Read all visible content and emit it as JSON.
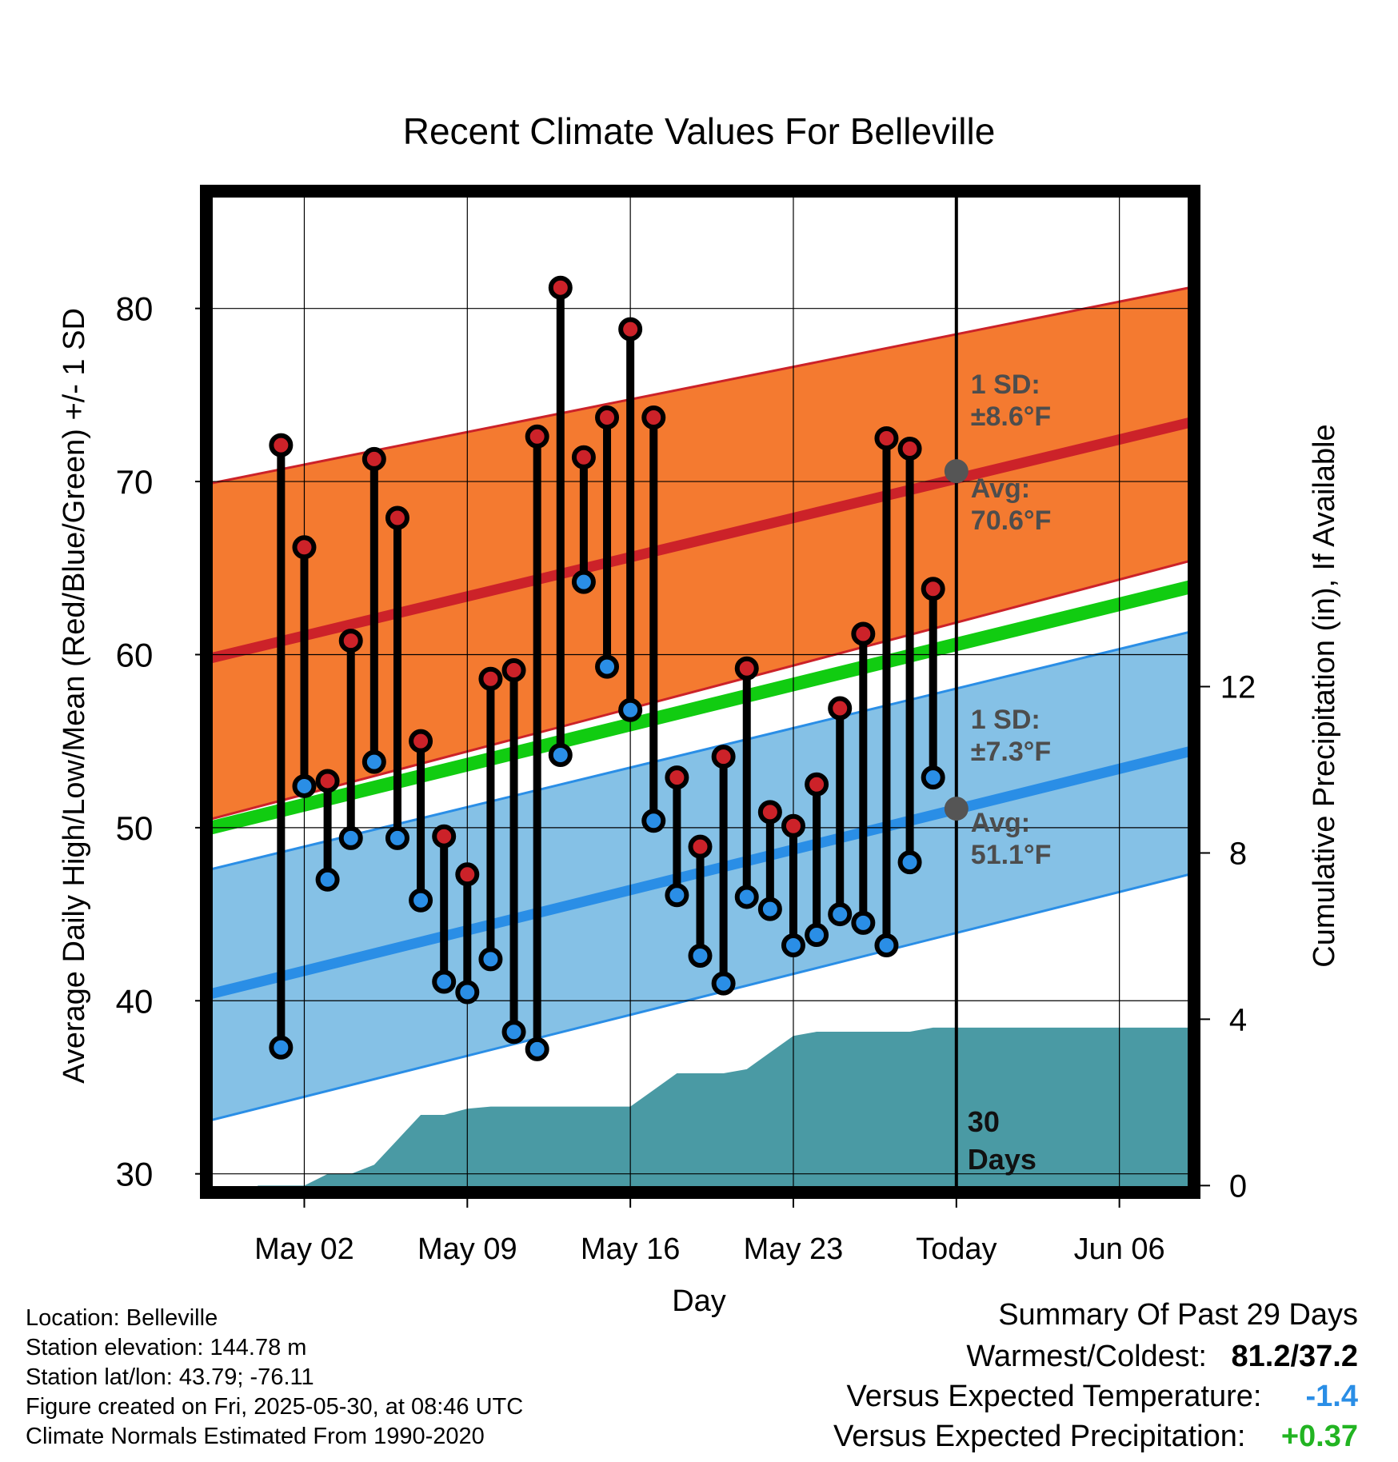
{
  "chart_data": {
    "type": "line",
    "title": "Recent Climate Values For Belleville",
    "xlabel": "Day",
    "ylabel": "Average Daily High/Low/Mean (Red/Blue/Green) +/- 1 SD",
    "y2label": "Cumulative Precipitation (in), If Available",
    "ylim": [
      29.2,
      86.5
    ],
    "y2lim": [
      -0.05,
      23.8
    ],
    "yticks": [
      30,
      40,
      50,
      60,
      70,
      80
    ],
    "y2ticks": [
      0,
      4,
      8,
      12
    ],
    "xlim": [
      "Apr 28",
      "Jun 09"
    ],
    "xticks": [
      {
        "date": "May 02",
        "label": "May 02"
      },
      {
        "date": "May 09",
        "label": "May 09"
      },
      {
        "date": "May 16",
        "label": "May 16"
      },
      {
        "date": "May 23",
        "label": "May 23"
      },
      {
        "date": "May 30",
        "label": "Today"
      },
      {
        "date": "Jun 06",
        "label": "Jun 06"
      }
    ],
    "grid": true,
    "today": "May 30",
    "today_label": "30\nDays",
    "normals": {
      "dates": [
        "Apr 28",
        "Jun 09"
      ],
      "high_avg": [
        59.8,
        73.4
      ],
      "high_upper": [
        69.9,
        81.2
      ],
      "high_lower": [
        50.5,
        65.4
      ],
      "mean": [
        50.0,
        63.9
      ],
      "low_avg": [
        40.4,
        54.4
      ],
      "low_upper": [
        47.6,
        61.3
      ],
      "low_lower": [
        33.1,
        47.3
      ]
    },
    "annotations": {
      "high_sd": {
        "line1": "1 SD:",
        "line2": "±8.6°F",
        "avg_label": "Avg:",
        "avg_value": "70.6°F",
        "avg": 70.6
      },
      "low_sd": {
        "line1": "1 SD:",
        "line2": "±7.3°F",
        "avg_label": "Avg:",
        "avg_value": "51.1°F",
        "avg": 51.1
      }
    },
    "series": [
      {
        "name": "High",
        "color": "#cc2229",
        "dates": [
          "May 01",
          "May 02",
          "May 03",
          "May 04",
          "May 05",
          "May 06",
          "May 07",
          "May 08",
          "May 09",
          "May 10",
          "May 11",
          "May 12",
          "May 13",
          "May 14",
          "May 15",
          "May 16",
          "May 17",
          "May 18",
          "May 19",
          "May 20",
          "May 21",
          "May 22",
          "May 23",
          "May 24",
          "May 25",
          "May 26",
          "May 27",
          "May 28",
          "May 29"
        ],
        "values": [
          72.1,
          66.2,
          52.7,
          60.8,
          71.3,
          67.9,
          55.0,
          49.5,
          47.3,
          58.6,
          59.1,
          72.6,
          81.2,
          71.4,
          73.7,
          78.8,
          73.7,
          52.9,
          48.9,
          54.1,
          59.2,
          50.9,
          50.1,
          52.5,
          56.9,
          61.2,
          72.5,
          71.9,
          63.8
        ]
      },
      {
        "name": "Low",
        "color": "#2a8ee6",
        "dates": [
          "May 01",
          "May 02",
          "May 03",
          "May 04",
          "May 05",
          "May 06",
          "May 07",
          "May 08",
          "May 09",
          "May 10",
          "May 11",
          "May 12",
          "May 13",
          "May 14",
          "May 15",
          "May 16",
          "May 17",
          "May 18",
          "May 19",
          "May 20",
          "May 21",
          "May 22",
          "May 23",
          "May 24",
          "May 25",
          "May 26",
          "May 27",
          "May 28",
          "May 29"
        ],
        "values": [
          37.3,
          52.4,
          47.0,
          49.4,
          53.8,
          49.4,
          45.8,
          41.1,
          40.5,
          42.4,
          38.2,
          37.2,
          54.2,
          64.2,
          59.3,
          56.8,
          50.4,
          46.1,
          42.6,
          41.0,
          46.0,
          45.3,
          43.2,
          43.8,
          45.0,
          44.5,
          43.2,
          48.0,
          52.9
        ]
      },
      {
        "name": "Cumulative Precipitation",
        "color": "#4a9aa4",
        "dates": [
          "Apr 30",
          "May 01",
          "May 02",
          "May 03",
          "May 04",
          "May 05",
          "May 06",
          "May 07",
          "May 08",
          "May 09",
          "May 10",
          "May 11",
          "May 12",
          "May 13",
          "May 14",
          "May 15",
          "May 16",
          "May 17",
          "May 18",
          "May 19",
          "May 20",
          "May 21",
          "May 22",
          "May 23",
          "May 24",
          "May 25",
          "May 26",
          "May 27",
          "May 28",
          "May 29",
          "May 30",
          "Jun 09"
        ],
        "values": [
          0.0,
          0.0,
          0.0,
          0.28,
          0.28,
          0.5,
          1.1,
          1.7,
          1.7,
          1.85,
          1.9,
          1.9,
          1.9,
          1.9,
          1.9,
          1.9,
          1.9,
          2.3,
          2.7,
          2.7,
          2.7,
          2.8,
          3.2,
          3.6,
          3.7,
          3.7,
          3.7,
          3.7,
          3.7,
          3.8,
          3.8,
          3.8
        ]
      }
    ]
  },
  "info": {
    "location": "Location: Belleville",
    "elevation": "Station elevation: 144.78 m",
    "latlon": "Station lat/lon: 43.79; -76.11",
    "created": "Figure created on Fri, 2025-05-30, at 08:46 UTC",
    "normals": "Climate Normals Estimated From 1990-2020"
  },
  "summary": {
    "title": "Summary Of Past 29 Days",
    "warm_cold_label": "Warmest/Coldest:",
    "warm_cold_value": "81.2/37.2",
    "temp_label": "Versus Expected Temperature:",
    "temp_value": "-1.4",
    "temp_color": "#2a8ee6",
    "precip_label": "Versus Expected Precipitation:",
    "precip_value": "+0.37",
    "precip_color": "#22b422"
  },
  "colors": {
    "high_band": "#f47a30",
    "high_line": "#cc2229",
    "low_band": "#85c1e6",
    "low_line": "#2a8ee6",
    "mean_line": "#11cc11",
    "precip_fill": "#4a9aa4",
    "annotation_text": "#4d4d4d",
    "marker_gray": "#555555"
  }
}
